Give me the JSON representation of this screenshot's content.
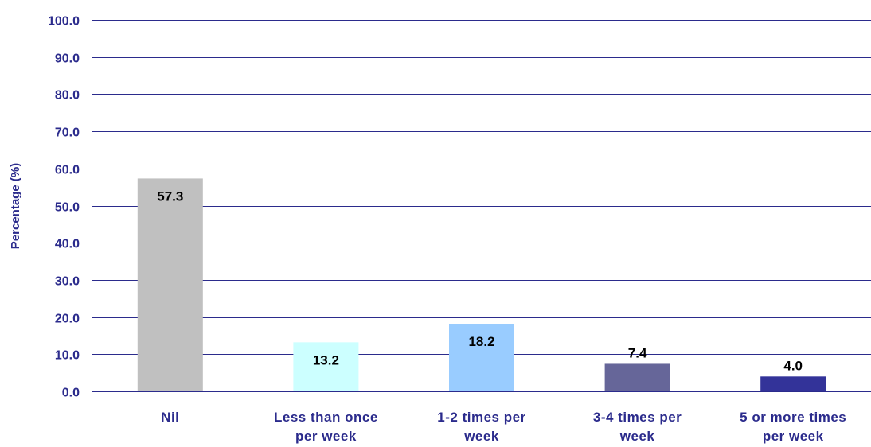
{
  "chart_data": {
    "type": "bar",
    "title": "",
    "xlabel": "",
    "ylabel": "Percentage (%)",
    "categories": [
      [
        "Nil"
      ],
      [
        "Less than once",
        "per week"
      ],
      [
        "1-2 times per",
        "week"
      ],
      [
        "3-4 times per",
        "week"
      ],
      [
        "5 or more times",
        "per week"
      ]
    ],
    "values": [
      57.3,
      13.2,
      18.2,
      7.4,
      4.0
    ],
    "value_labels": [
      "57.3",
      "13.2",
      "18.2",
      "7.4",
      "4.0"
    ],
    "bar_colors": [
      "#c0c0c0",
      "#ccffff",
      "#99ccff",
      "#666699",
      "#333399"
    ],
    "label_placement": [
      "inside",
      "inside",
      "inside",
      "outside",
      "outside"
    ],
    "ylim": [
      0,
      100
    ],
    "yticks": [
      0,
      10,
      20,
      30,
      40,
      50,
      60,
      70,
      80,
      90,
      100
    ],
    "ytick_labels": [
      "0.0",
      "10.0",
      "20.0",
      "30.0",
      "40.0",
      "50.0",
      "60.0",
      "70.0",
      "80.0",
      "90.0",
      "100.0"
    ],
    "grid": true,
    "legend": "none",
    "gridline_color": "#2b2b8c",
    "axis_text_color": "#2b2b8c"
  }
}
